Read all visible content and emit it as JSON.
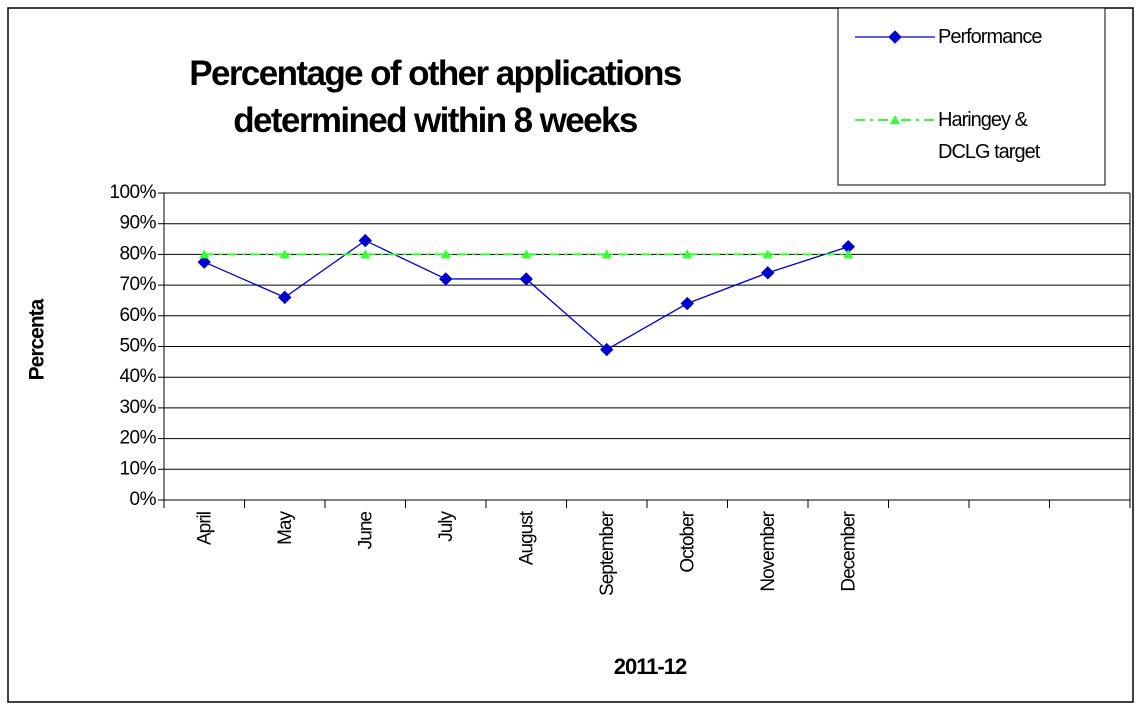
{
  "chart_data": {
    "type": "line",
    "title": "Percentage of other applications determined within 8 weeks",
    "x_label": "2011-12",
    "y_label": "Percenta",
    "categories": [
      "April",
      "May",
      "June",
      "July",
      "August",
      "September",
      "October",
      "November",
      "December",
      null,
      null,
      null
    ],
    "series": [
      {
        "name": "Performance",
        "color": "#0000cc",
        "marker": "diamond",
        "line_style": "solid",
        "values": [
          77.5,
          66,
          84.5,
          72,
          72,
          49,
          64,
          74,
          82.5,
          null,
          null,
          null
        ]
      },
      {
        "name": "Haringey & DCLG target",
        "color": "#33ff33",
        "marker": "triangle",
        "line_style": "dashdot",
        "values": [
          80,
          80,
          80,
          80,
          80,
          80,
          80,
          80,
          80,
          null,
          null,
          null
        ]
      }
    ],
    "ylim": [
      0,
      100
    ],
    "yticks": [
      {
        "value": 0,
        "label": "0%"
      },
      {
        "value": 10,
        "label": "10%"
      },
      {
        "value": 20,
        "label": "20%"
      },
      {
        "value": 30,
        "label": "30%"
      },
      {
        "value": 40,
        "label": "40%"
      },
      {
        "value": 50,
        "label": "50%"
      },
      {
        "value": 60,
        "label": "60%"
      },
      {
        "value": 70,
        "label": "70%"
      },
      {
        "value": 80,
        "label": "80%"
      },
      {
        "value": 90,
        "label": "90%"
      },
      {
        "value": 100,
        "label": "100%"
      }
    ],
    "grid": true,
    "legend": "top-right"
  }
}
